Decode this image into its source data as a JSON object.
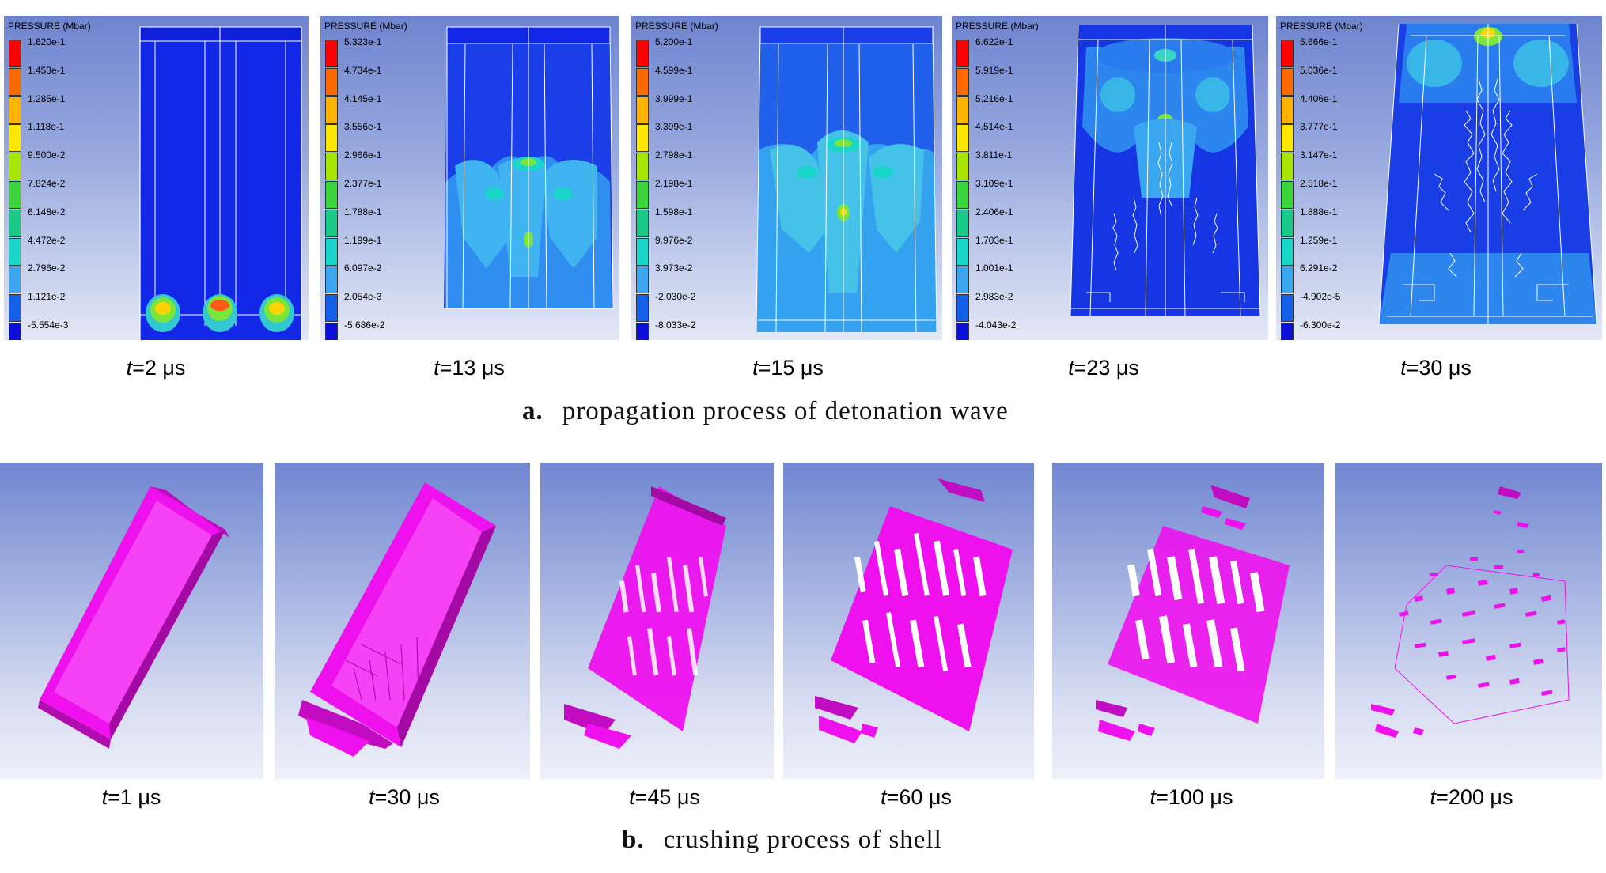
{
  "section_a": {
    "letter": "a.",
    "text": "propagation process of detonation wave",
    "panels": [
      {
        "legend_title": "PRESSURE (Mbar)",
        "ticks": [
          "1.620e-1",
          "1.453e-1",
          "1.285e-1",
          "1.118e-1",
          "9.500e-2",
          "7.824e-2",
          "6.148e-2",
          "4.472e-2",
          "2.796e-2",
          "1.121e-2",
          "-5.554e-3"
        ],
        "t_prefix": "t",
        "t_value": "=2 μs"
      },
      {
        "legend_title": "PRESSURE (Mbar)",
        "ticks": [
          "5.323e-1",
          "4.734e-1",
          "4.145e-1",
          "3.556e-1",
          "2.966e-1",
          "2.377e-1",
          "1.788e-1",
          "1.199e-1",
          "6.097e-2",
          "2.054e-3",
          "-5.686e-2"
        ],
        "t_prefix": "t",
        "t_value": "=13 μs"
      },
      {
        "legend_title": "PRESSURE (Mbar)",
        "ticks": [
          "5.200e-1",
          "4.599e-1",
          "3.999e-1",
          "3.399e-1",
          "2.798e-1",
          "2.198e-1",
          "1.598e-1",
          "9.976e-2",
          "3.973e-2",
          "-2.030e-2",
          "-8.033e-2"
        ],
        "t_prefix": "t",
        "t_value": "=15 μs"
      },
      {
        "legend_title": "PRESSURE (Mbar)",
        "ticks": [
          "6.622e-1",
          "5.919e-1",
          "5.216e-1",
          "4.514e-1",
          "3.811e-1",
          "3.109e-1",
          "2.406e-1",
          "1.703e-1",
          "1.001e-1",
          "2.983e-2",
          "-4.043e-2"
        ],
        "t_prefix": "t",
        "t_value": "=23 μs"
      },
      {
        "legend_title": "PRESSURE (Mbar)",
        "ticks": [
          "5.666e-1",
          "5.036e-1",
          "4.406e-1",
          "3.777e-1",
          "3.147e-1",
          "2.518e-1",
          "1.888e-1",
          "1.259e-1",
          "6.291e-2",
          "-4.902e-5",
          "-6.300e-2"
        ],
        "t_prefix": "t",
        "t_value": "=30 μs"
      }
    ]
  },
  "section_b": {
    "letter": "b.",
    "text": "crushing process of shell",
    "panels": [
      {
        "t_prefix": "t",
        "t_value": "=1 μs"
      },
      {
        "t_prefix": "t",
        "t_value": "=30 μs"
      },
      {
        "t_prefix": "t",
        "t_value": "=45 μs"
      },
      {
        "t_prefix": "t",
        "t_value": "=60 μs"
      },
      {
        "t_prefix": "t",
        "t_value": "=100 μs"
      },
      {
        "t_prefix": "t",
        "t_value": "=200 μs"
      }
    ]
  },
  "colors": {
    "legend_scale": [
      "#ff0000",
      "#ff6a00",
      "#ffb300",
      "#ffe600",
      "#a6e600",
      "#3cd43c",
      "#19c98a",
      "#19d6c8",
      "#3aa6f0",
      "#1560e8",
      "#0a10d8"
    ],
    "shell": "#ee11ee",
    "shell_dark": "#a30aa3",
    "contour_base": "#1438e0"
  }
}
